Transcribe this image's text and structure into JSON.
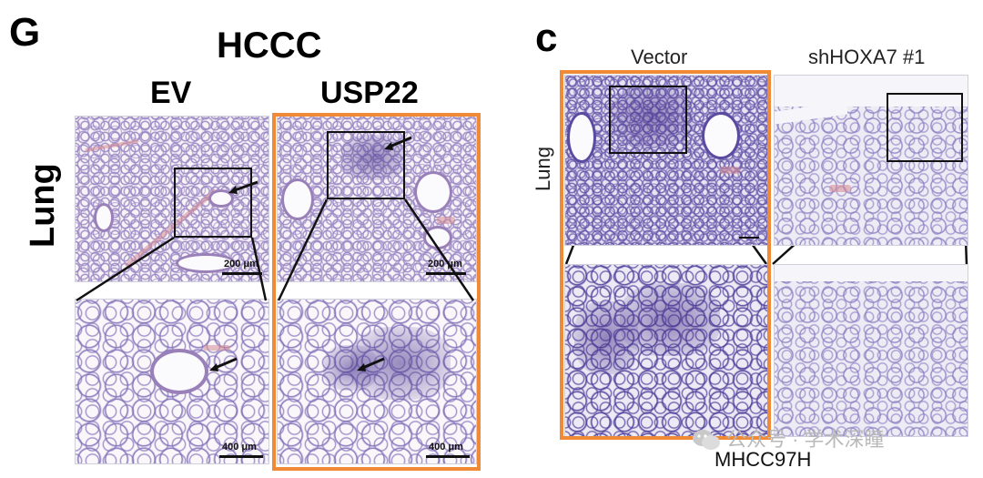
{
  "panel_g": {
    "letter": "G",
    "title": "HCCC",
    "columns": [
      "EV",
      "USP22"
    ],
    "row_label": "Lung",
    "scale_top": "200 μm",
    "scale_bottom": "400 μm"
  },
  "panel_c": {
    "letter": "c",
    "columns": [
      "Vector",
      "shHOXA7 #1"
    ],
    "row_label": "Lung",
    "cell_line": "MHCC97H"
  },
  "watermark": "公众号 · 学术深瞳",
  "colors": {
    "highlight_frame": "#f08a37",
    "stain_purple": "#6a58ad",
    "stain_pink": "#d68c96"
  }
}
